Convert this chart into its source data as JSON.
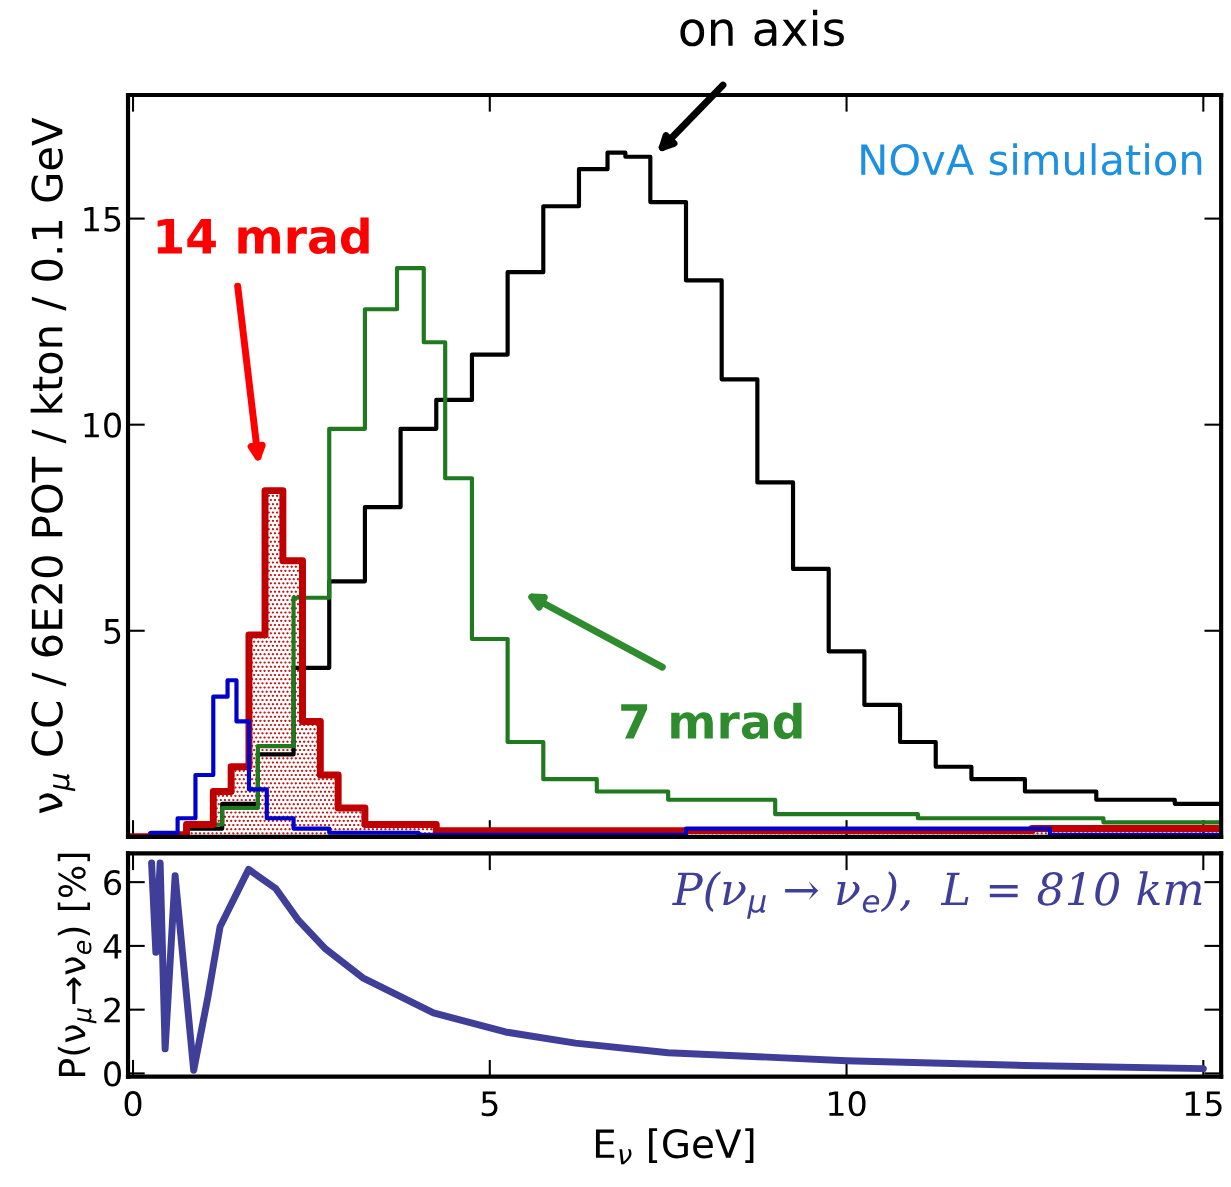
{
  "chart_data": [
    {
      "type": "step",
      "ylabel": "ν$_{μ}$ CC / 6E20 POT / kton / 0.1 GeV",
      "xlim": [
        -0.07,
        15.25
      ],
      "ylim": [
        0,
        18
      ],
      "xticks": [
        {
          "value": 0,
          "label": null
        },
        {
          "value": 5,
          "label": null
        },
        {
          "value": 10,
          "label": null
        },
        {
          "value": 15,
          "label": null
        }
      ],
      "yticks": [
        5,
        10,
        15
      ],
      "tick_labels": "y",
      "grid": false,
      "legend": false,
      "series": [
        {
          "color": "#000000",
          "x": [
            0,
            0.5,
            1,
            1.5,
            2,
            2.5,
            3,
            3.5,
            4,
            4.5,
            5,
            5.5,
            6,
            6.5,
            6.8,
            7,
            7.5,
            8,
            8.5,
            9,
            9.5,
            10,
            10.5,
            11,
            11.5,
            12,
            13,
            14,
            15.2
          ],
          "values": [
            0,
            0.05,
            0.2,
            0.8,
            2.0,
            4.1,
            6.2,
            8.0,
            9.9,
            10.6,
            11.7,
            13.7,
            15.3,
            16.2,
            16.6,
            16.5,
            15.4,
            13.5,
            11.1,
            8.6,
            6.5,
            4.5,
            3.2,
            2.3,
            1.7,
            1.4,
            1.1,
            0.9,
            0.8
          ]
        },
        {
          "color": "#1f7a1f",
          "x": [
            1,
            1.5,
            2,
            2.5,
            3,
            3.5,
            3.9,
            4.25,
            4.5,
            5,
            5.5,
            6,
            7,
            8,
            10,
            12,
            15.2
          ],
          "values": [
            0.3,
            0.7,
            2.2,
            5.8,
            9.9,
            12.8,
            13.8,
            12.0,
            8.7,
            4.8,
            2.3,
            1.4,
            1.1,
            0.9,
            0.55,
            0.45,
            0.35
          ]
        },
        {
          "type": "area",
          "color": "#c00000",
          "x": [
            0,
            0.5,
            1,
            1.25,
            1.5,
            1.75,
            1.95,
            2.25,
            2.5,
            2.75,
            3,
            3.5,
            5,
            10,
            15.2
          ],
          "values": [
            0,
            0.05,
            0.3,
            1.1,
            1.7,
            4.9,
            8.4,
            6.7,
            2.8,
            1.5,
            0.7,
            0.3,
            0.15,
            0.15,
            0.2
          ]
        },
        {
          "color": "#0000cc",
          "x": [
            0,
            0.5,
            0.75,
            1,
            1.25,
            1.4,
            1.5,
            1.75,
            2,
            2.5,
            3,
            5,
            10.5,
            15.2
          ],
          "values": [
            0,
            0.1,
            0.45,
            1.5,
            3.4,
            3.8,
            2.8,
            1.15,
            0.45,
            0.2,
            0.1,
            0.05,
            0.2,
            0.05
          ]
        }
      ],
      "annotations": [
        "on axis",
        "7 mrad",
        "14 mrad",
        "NOvA simulation"
      ]
    },
    {
      "type": "line",
      "xlabel": "E$_{ν}$ [GeV]",
      "ylabel": "P(ν$_{μ}$→ν$_{e}$) [%]",
      "xlim": [
        -0.07,
        15.25
      ],
      "ylim": [
        -0.1,
        6.9
      ],
      "xticks": [
        0,
        5,
        10,
        15
      ],
      "yticks": [
        0,
        2,
        4,
        6
      ],
      "grid": false,
      "legend": false,
      "series": [
        {
          "color": "#3f3f9a",
          "x": [
            0.26,
            0.32,
            0.38,
            0.45,
            0.59,
            0.85,
            1.05,
            1.22,
            1.62,
            2.0,
            2.32,
            2.7,
            3.22,
            4.21,
            5.22,
            6.2,
            7.5,
            10,
            12.5,
            15
          ],
          "values": [
            6.6,
            3.8,
            6.6,
            0.77,
            6.2,
            0.1,
            2.4,
            4.6,
            6.4,
            5.8,
            4.8,
            3.9,
            3.0,
            1.9,
            1.3,
            0.95,
            0.65,
            0.4,
            0.25,
            0.15
          ]
        }
      ],
      "annotations": [
        "P(ν$_{μ}$ → ν$_{e}$),  L = 810 km"
      ]
    }
  ]
}
